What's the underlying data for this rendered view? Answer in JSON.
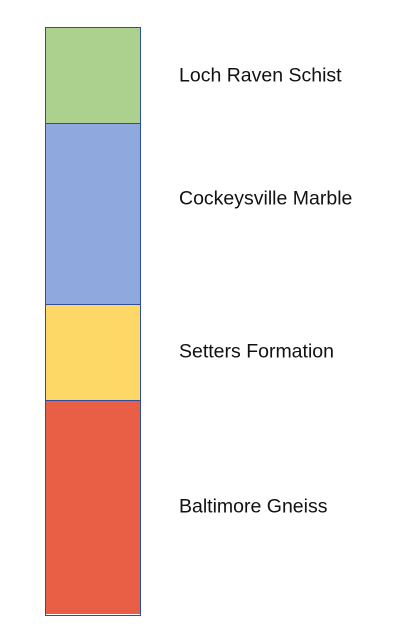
{
  "units": [
    {
      "name": "Loch Raven Schist",
      "color": "#acd18f"
    },
    {
      "name": "Cockeysville Marble",
      "color": "#8fa9de"
    },
    {
      "name": "Setters Formation",
      "color": "#fed866"
    },
    {
      "name": "Baltimore Gneiss",
      "color": "#e95f45"
    }
  ]
}
